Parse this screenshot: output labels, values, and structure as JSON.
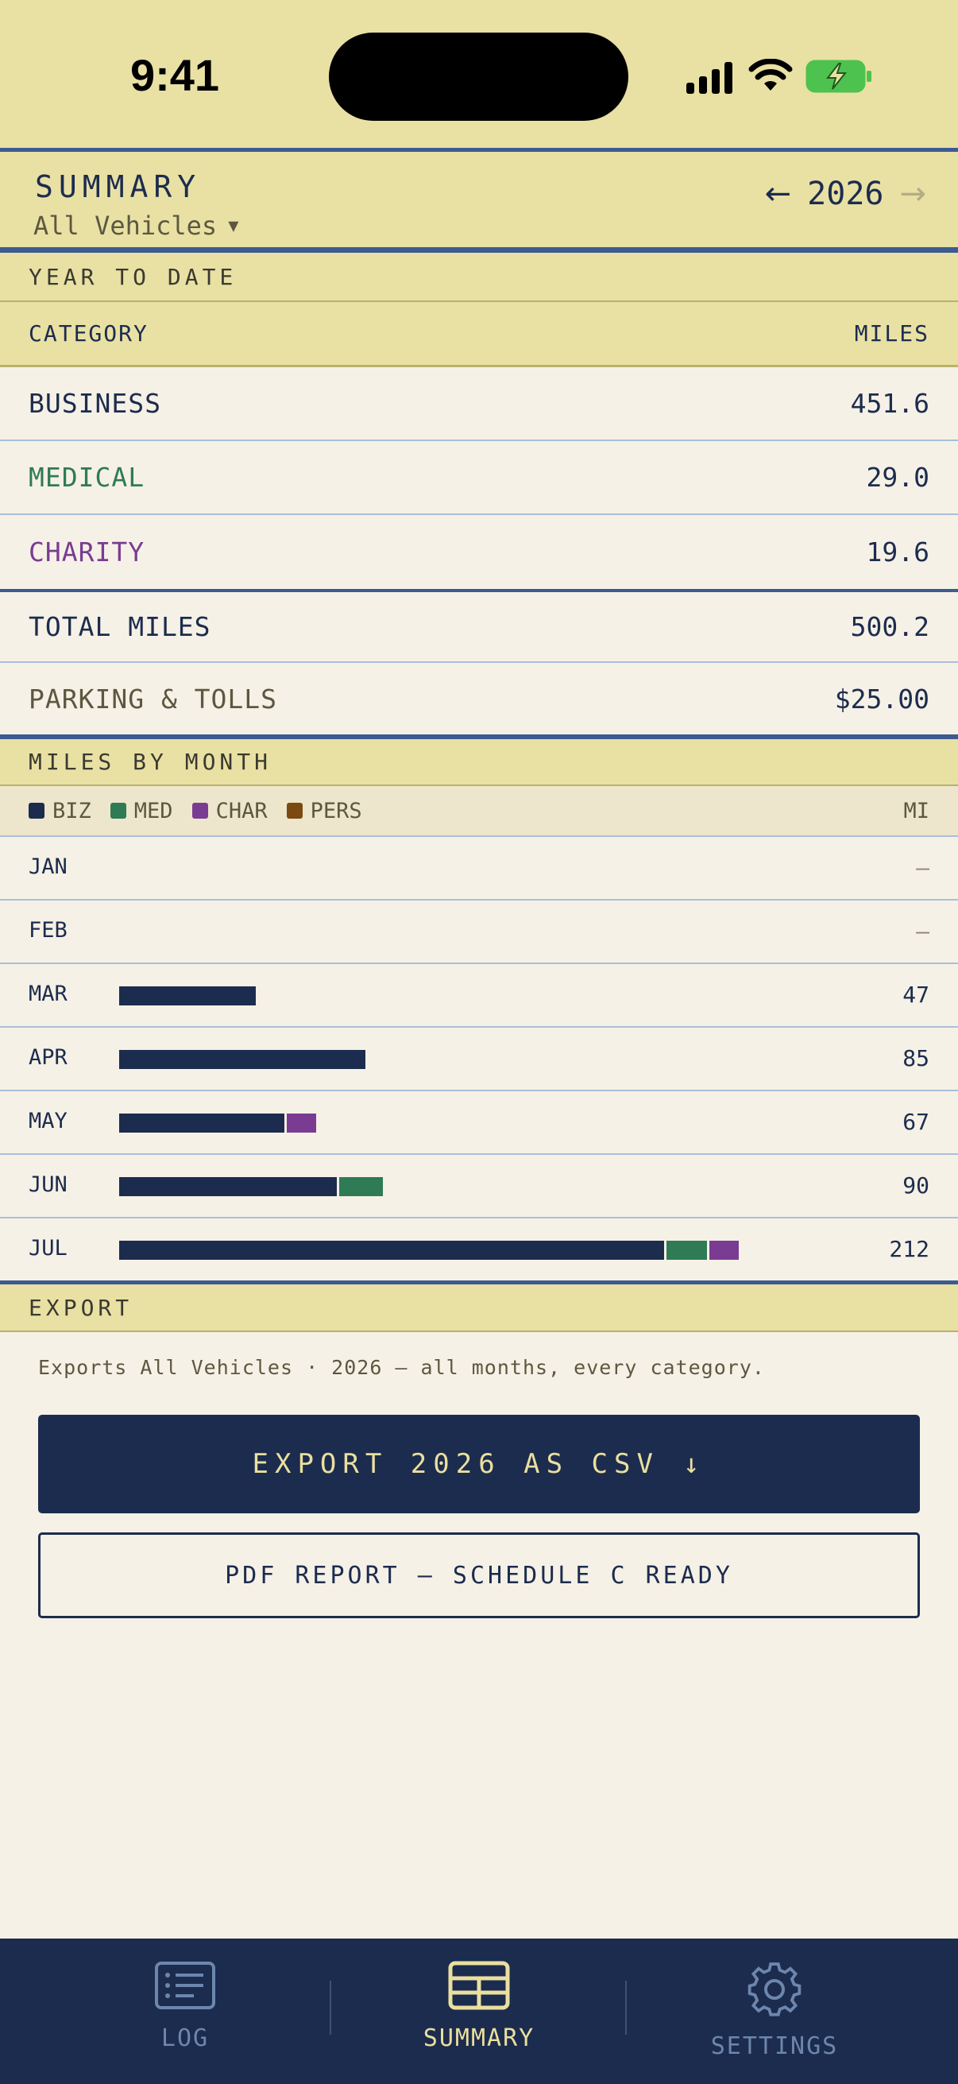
{
  "status_bar": {
    "time": "9:41"
  },
  "header": {
    "title": "SUMMARY",
    "vehicle": "All Vehicles",
    "year": "2026"
  },
  "ytd": {
    "section_title": "YEAR TO DATE",
    "col_category": "CATEGORY",
    "col_miles": "MILES",
    "rows": [
      {
        "label": "BUSINESS",
        "value": "451.6",
        "color": "#1c2c4e"
      },
      {
        "label": "MEDICAL",
        "value": "29.0",
        "color": "#2e7b55"
      },
      {
        "label": "CHARITY",
        "value": "19.6",
        "color": "#7a3c92"
      }
    ],
    "total": {
      "label": "TOTAL MILES",
      "value": "500.2"
    },
    "parking": {
      "label": "PARKING & TOLLS",
      "value": "$25.00"
    }
  },
  "monthly": {
    "section_title": "MILES BY MONTH",
    "legend": [
      {
        "label": "BIZ",
        "color": "#1c2c4e"
      },
      {
        "label": "MED",
        "color": "#2e7b55"
      },
      {
        "label": "CHAR",
        "color": "#7a3c92"
      },
      {
        "label": "PERS",
        "color": "#7a4a10"
      }
    ],
    "unit": "MI"
  },
  "chart_data": {
    "type": "bar",
    "stacked": true,
    "orientation": "horizontal",
    "categories": [
      "JAN",
      "FEB",
      "MAR",
      "APR",
      "MAY",
      "JUN",
      "JUL"
    ],
    "series": [
      {
        "name": "BIZ",
        "values": [
          0,
          0,
          47,
          85,
          57,
          75,
          188
        ]
      },
      {
        "name": "MED",
        "values": [
          0,
          0,
          0,
          0,
          0,
          15,
          14
        ]
      },
      {
        "name": "CHAR",
        "values": [
          0,
          0,
          0,
          0,
          10,
          0,
          10
        ]
      },
      {
        "name": "PERS",
        "values": [
          0,
          0,
          0,
          0,
          0,
          0,
          0
        ]
      }
    ],
    "totals_labels": [
      "—",
      "—",
      "47",
      "85",
      "67",
      "90",
      "212"
    ]
  },
  "export": {
    "section_title": "EXPORT",
    "note": "Exports All Vehicles · 2026 — all months, every category.",
    "csv_label": "EXPORT 2026 AS CSV",
    "csv_icon": "↓",
    "pdf_label": "PDF REPORT — SCHEDULE C READY"
  },
  "tabs": [
    {
      "label": "LOG",
      "icon": "list-icon",
      "active": false
    },
    {
      "label": "SUMMARY",
      "icon": "table-icon",
      "active": true
    },
    {
      "label": "SETTINGS",
      "icon": "gear-icon",
      "active": false
    }
  ]
}
